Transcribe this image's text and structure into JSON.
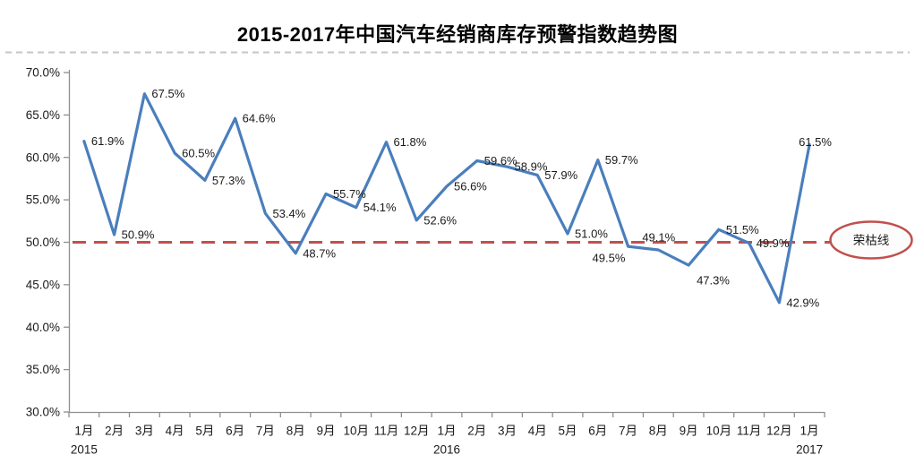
{
  "chart_data": {
    "type": "line",
    "title": "2015-2017年中国汽车经销商库存预警指数趋势图",
    "categories": [
      "1月",
      "2月",
      "3月",
      "4月",
      "5月",
      "6月",
      "7月",
      "8月",
      "9月",
      "10月",
      "11月",
      "12月",
      "1月",
      "2月",
      "3月",
      "4月",
      "5月",
      "6月",
      "7月",
      "8月",
      "9月",
      "10月",
      "11月",
      "12月",
      "1月"
    ],
    "values": [
      61.9,
      50.9,
      67.5,
      60.5,
      57.3,
      64.6,
      53.4,
      48.7,
      55.7,
      54.1,
      61.8,
      52.6,
      56.6,
      59.6,
      58.9,
      57.9,
      51.0,
      59.7,
      49.5,
      49.1,
      47.3,
      51.5,
      49.9,
      42.9,
      61.5
    ],
    "value_label_format": "one-decimal-percent",
    "year_labels": [
      {
        "index": 0,
        "text": "2015"
      },
      {
        "index": 12,
        "text": "2016"
      },
      {
        "index": 24,
        "text": "2017"
      }
    ],
    "ylim": [
      30,
      70
    ],
    "ytick_labels": [
      "70.0%",
      "65.0%",
      "60.0%",
      "55.0%",
      "50.0%",
      "45.0%",
      "40.0%",
      "35.0%",
      "30.0%"
    ],
    "grid": false,
    "legend": "none",
    "threshold_line": {
      "value": 50,
      "label": "荣枯线",
      "style": "dashed"
    },
    "label_offset_overrides": {
      "18": [
        -40,
        13
      ],
      "19": [
        -18,
        -14
      ],
      "20": [
        9,
        17
      ],
      "24": [
        -12,
        -3
      ]
    }
  },
  "colors": {
    "series_line": "#4A7EBD",
    "threshold": "#C0504D",
    "axis": "#8F8F8F",
    "text": "#1A1A1A",
    "title_text": "#000000",
    "divider": "#C6C6C6",
    "ellipse_fill": "#FCFCFC"
  }
}
